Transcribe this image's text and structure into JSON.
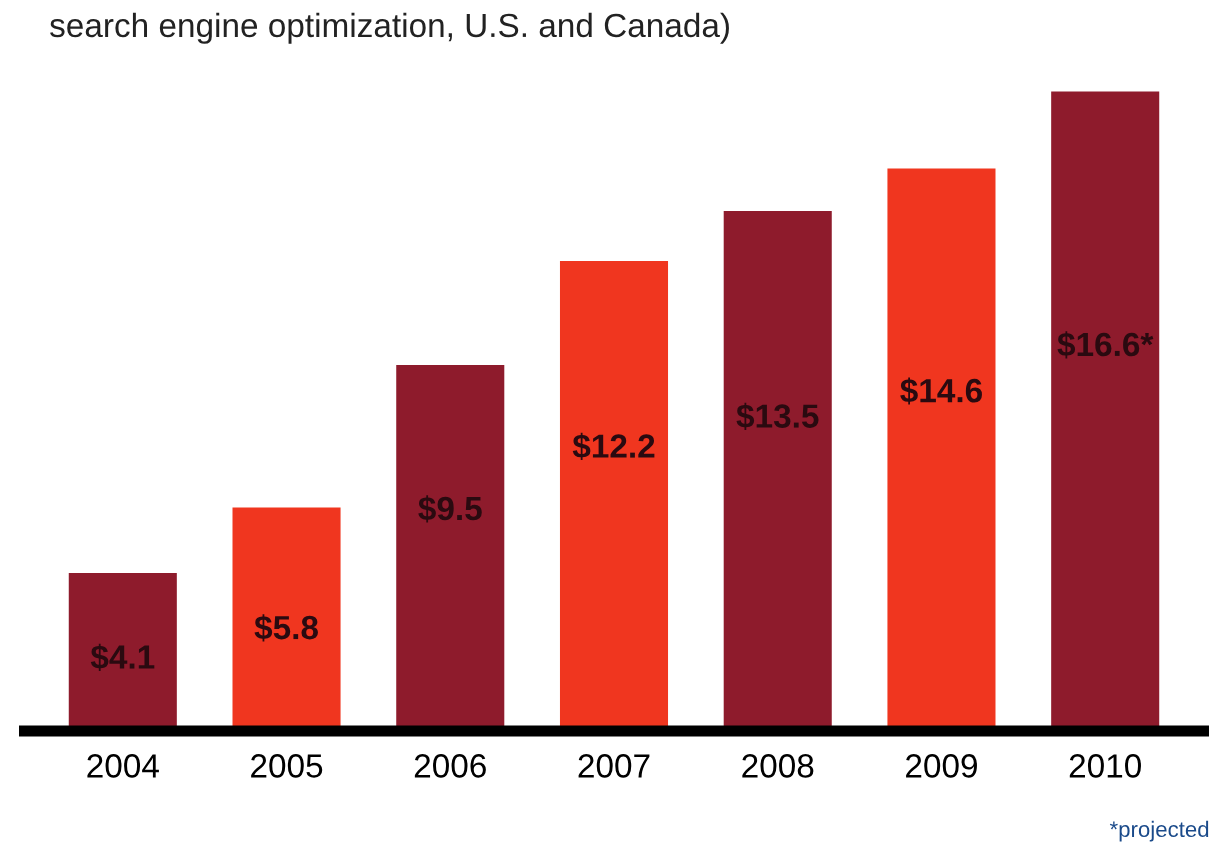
{
  "chart_data": {
    "type": "bar",
    "title": "search engine optimization, U.S. and Canada)",
    "categories": [
      "2004",
      "2005",
      "2006",
      "2007",
      "2008",
      "2009",
      "2010"
    ],
    "values": [
      4.1,
      5.8,
      9.5,
      12.2,
      13.5,
      14.6,
      16.6
    ],
    "colors": [
      "#8e1b2c",
      "#f0361f",
      "#8e1b2c",
      "#f0361f",
      "#8e1b2c",
      "#f0361f",
      "#8e1b2c"
    ],
    "value_labels": [
      "$4.1",
      "$5.8",
      "$9.5",
      "$12.2",
      "$13.5",
      "$14.6",
      "$16.6*"
    ],
    "annotations": [
      "*projected"
    ],
    "grid": false,
    "legend": false
  }
}
